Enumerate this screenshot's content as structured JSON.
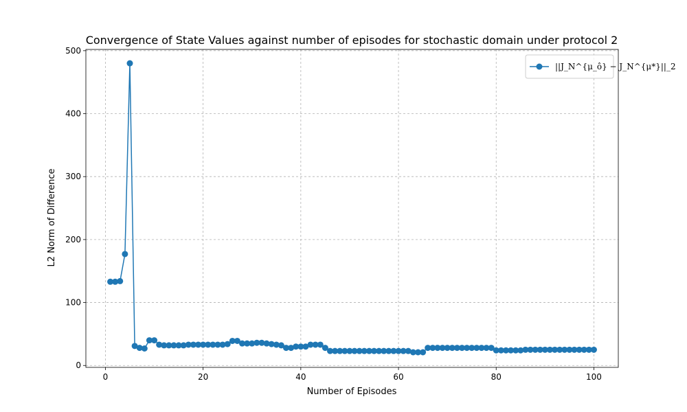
{
  "chart_data": {
    "type": "line",
    "title": "Convergence of State Values against number of episodes for stochastic domain under protocol 2",
    "xlabel": "Number of Episodes",
    "ylabel": "L2 Norm of Difference",
    "xlim": [
      -4,
      105
    ],
    "ylim": [
      -3,
      502
    ],
    "xticks": [
      0,
      20,
      40,
      60,
      80,
      100
    ],
    "yticks": [
      0,
      100,
      200,
      300,
      400,
      500
    ],
    "grid": true,
    "legend_placement": "top-right",
    "colors": {
      "series": "#1f77b4"
    },
    "series": [
      {
        "name": "||J_N^{μ_ô} − J_N^{μ*}||_2",
        "x": [
          1,
          2,
          3,
          4,
          5,
          6,
          7,
          8,
          9,
          10,
          11,
          12,
          13,
          14,
          15,
          16,
          17,
          18,
          19,
          20,
          21,
          22,
          23,
          24,
          25,
          26,
          27,
          28,
          29,
          30,
          31,
          32,
          33,
          34,
          35,
          36,
          37,
          38,
          39,
          40,
          41,
          42,
          43,
          44,
          45,
          46,
          47,
          48,
          49,
          50,
          51,
          52,
          53,
          54,
          55,
          56,
          57,
          58,
          59,
          60,
          61,
          62,
          63,
          64,
          65,
          66,
          67,
          68,
          69,
          70,
          71,
          72,
          73,
          74,
          75,
          76,
          77,
          78,
          79,
          80,
          81,
          82,
          83,
          84,
          85,
          86,
          87,
          88,
          89,
          90,
          91,
          92,
          93,
          94,
          95,
          96,
          97,
          98,
          99,
          100
        ],
        "values": [
          133,
          133,
          134,
          177,
          480,
          31,
          28,
          27,
          40,
          40,
          33,
          32,
          32,
          32,
          32,
          32,
          33,
          33,
          33,
          33,
          33,
          33,
          33,
          33,
          34,
          39,
          39,
          35,
          35,
          35,
          36,
          36,
          35,
          34,
          33,
          32,
          28,
          28,
          30,
          30,
          30,
          33,
          33,
          33,
          28,
          23,
          23,
          23,
          23,
          23,
          23,
          23,
          23,
          23,
          23,
          23,
          23,
          23,
          23,
          23,
          23,
          23,
          21,
          21,
          21,
          28,
          28,
          28,
          28,
          28,
          28,
          28,
          28,
          28,
          28,
          28,
          28,
          28,
          28,
          24,
          24,
          24,
          24,
          24,
          24,
          25,
          25,
          25,
          25,
          25,
          25,
          25,
          25,
          25,
          25,
          25,
          25,
          25,
          25,
          25
        ]
      }
    ]
  }
}
